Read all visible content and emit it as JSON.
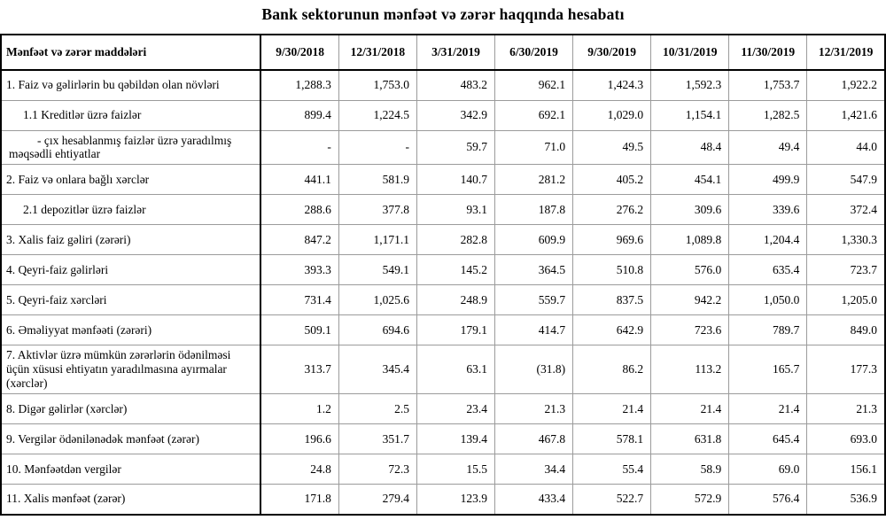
{
  "title": "Bank sektorunun mənfəət və zərər haqqında hesabatı",
  "table": {
    "header": [
      "Mənfəət və zərər maddələri",
      "9/30/2018",
      "12/31/2018",
      "3/31/2019",
      "6/30/2019",
      "9/30/2019",
      "10/31/2019",
      "11/30/2019",
      "12/31/2019"
    ],
    "rows": [
      {
        "label": "1. Faiz və gəlirlərin bu qəbildən olan növləri",
        "indent": 0,
        "values": [
          "1,288.3",
          "1,753.0",
          "483.2",
          "962.1",
          "1,424.3",
          "1,592.3",
          "1,753.7",
          "1,922.2"
        ]
      },
      {
        "label": "1.1 Kreditlər üzrə faizlər",
        "indent": 1,
        "values": [
          "899.4",
          "1,224.5",
          "342.9",
          "692.1",
          "1,029.0",
          "1,154.1",
          "1,282.5",
          "1,421.6"
        ]
      },
      {
        "label": "-  çıx hesablanmış faizlər üzrə yaradılmış məqsədli ehtiyatlar",
        "indent": 2,
        "values": [
          "-",
          "-",
          "59.7",
          "71.0",
          "49.5",
          "48.4",
          "49.4",
          "44.0"
        ]
      },
      {
        "label": "2. Faiz və onlara bağlı xərclər",
        "indent": 0,
        "values": [
          "441.1",
          "581.9",
          "140.7",
          "281.2",
          "405.2",
          "454.1",
          "499.9",
          "547.9"
        ]
      },
      {
        "label": "2.1 depozitlər üzrə faizlər",
        "indent": 1,
        "values": [
          "288.6",
          "377.8",
          "93.1",
          "187.8",
          "276.2",
          "309.6",
          "339.6",
          "372.4"
        ]
      },
      {
        "label": "3. Xalis faiz gəliri (zərəri)",
        "indent": 0,
        "values": [
          "847.2",
          "1,171.1",
          "282.8",
          "609.9",
          "969.6",
          "1,089.8",
          "1,204.4",
          "1,330.3"
        ]
      },
      {
        "label": "4. Qeyri-faiz gəlirləri",
        "indent": 0,
        "values": [
          "393.3",
          "549.1",
          "145.2",
          "364.5",
          "510.8",
          "576.0",
          "635.4",
          "723.7"
        ]
      },
      {
        "label": "5. Qeyri-faiz xərcləri",
        "indent": 0,
        "values": [
          "731.4",
          "1,025.6",
          "248.9",
          "559.7",
          "837.5",
          "942.2",
          "1,050.0",
          "1,205.0"
        ]
      },
      {
        "label": "6. Əməliyyat mənfəəti (zərəri)",
        "indent": 0,
        "values": [
          "509.1",
          "694.6",
          "179.1",
          "414.7",
          "642.9",
          "723.6",
          "789.7",
          "849.0"
        ]
      },
      {
        "label": "7. Aktivlər üzrə mümkün zərərlərin ödənilməsi üçün xüsusi ehtiyatın yaradılmasına ayırmalar (xərclər)",
        "indent": 0,
        "values": [
          "313.7",
          "345.4",
          "63.1",
          "(31.8)",
          "86.2",
          "113.2",
          "165.7",
          "177.3"
        ]
      },
      {
        "label": "8. Digər gəlirlər (xərclər)",
        "indent": 0,
        "values": [
          "1.2",
          "2.5",
          "23.4",
          "21.3",
          "21.4",
          "21.4",
          "21.4",
          "21.3"
        ]
      },
      {
        "label": "9. Vergilər ödənilənədək mənfəət (zərər)",
        "indent": 0,
        "values": [
          "196.6",
          "351.7",
          "139.4",
          "467.8",
          "578.1",
          "631.8",
          "645.4",
          "693.0"
        ]
      },
      {
        "label": "10. Mənfəətdən vergilər",
        "indent": 0,
        "values": [
          "24.8",
          "72.3",
          "15.5",
          "34.4",
          "55.4",
          "58.9",
          "69.0",
          "156.1"
        ]
      },
      {
        "label": "11. Xalis mənfəət (zərər)",
        "indent": 0,
        "values": [
          "171.8",
          "279.4",
          "123.9",
          "433.4",
          "522.7",
          "572.9",
          "576.4",
          "536.9"
        ]
      }
    ]
  }
}
